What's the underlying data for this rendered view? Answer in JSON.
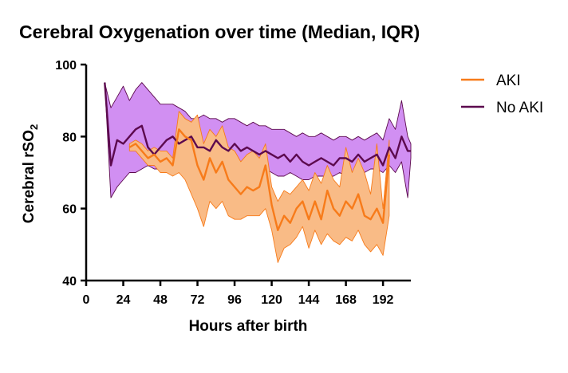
{
  "chart_data": {
    "type": "line",
    "title": "Cerebral Oxygenation over time (Median, IQR)",
    "xlabel": "Hours after birth",
    "ylabel": "Cerebral rSO",
    "ylabel_subscript": "2",
    "xlim": [
      0,
      210
    ],
    "ylim": [
      40,
      100
    ],
    "xticks": [
      0,
      24,
      48,
      72,
      96,
      120,
      144,
      168,
      192
    ],
    "yticks": [
      40,
      60,
      80,
      100
    ],
    "grid": false,
    "legend_position": "top-right",
    "series": [
      {
        "name": "No AKI",
        "color": "#5c0a4e",
        "band_color": "#d18ff2",
        "x": [
          12,
          16,
          20,
          24,
          28,
          32,
          36,
          40,
          44,
          48,
          52,
          56,
          60,
          64,
          68,
          72,
          76,
          80,
          84,
          88,
          92,
          96,
          100,
          104,
          108,
          112,
          116,
          120,
          124,
          128,
          132,
          136,
          140,
          144,
          148,
          152,
          156,
          160,
          164,
          168,
          172,
          176,
          180,
          184,
          188,
          192,
          196,
          200,
          204,
          208,
          210
        ],
        "median": [
          95,
          72,
          79,
          78,
          80,
          82,
          83,
          77,
          75,
          77,
          79,
          80,
          78,
          79,
          80,
          77,
          77,
          76,
          79,
          77,
          76,
          78,
          76,
          77,
          76,
          75,
          76,
          75,
          74,
          75,
          73,
          75,
          73,
          72,
          73,
          74,
          73,
          72,
          74,
          74,
          73,
          75,
          73,
          74,
          75,
          72,
          77,
          74,
          80,
          76,
          76
        ],
        "q1": [
          95,
          63,
          66,
          68,
          70,
          70,
          71,
          72,
          71,
          71,
          72,
          72,
          73,
          73,
          74,
          73,
          73,
          72,
          72,
          72,
          72,
          72,
          71,
          71,
          71,
          71,
          71,
          70,
          69,
          69,
          70,
          69,
          68,
          68,
          69,
          69,
          69,
          69,
          70,
          69,
          70,
          70,
          70,
          71,
          71,
          70,
          72,
          70,
          73,
          63,
          74
        ],
        "q3": [
          95,
          88,
          91,
          94,
          90,
          93,
          95,
          93,
          91,
          89,
          89,
          89,
          88,
          87,
          85,
          85,
          86,
          85,
          85,
          84,
          85,
          85,
          84,
          83,
          84,
          83,
          83,
          82,
          82,
          82,
          81,
          80,
          81,
          80,
          80,
          81,
          80,
          79,
          80,
          80,
          79,
          80,
          79,
          80,
          81,
          79,
          85,
          82,
          90,
          80,
          78
        ]
      },
      {
        "name": "AKI",
        "color": "#f77b1a",
        "band_color": "#f9bb86",
        "x": [
          28,
          32,
          36,
          40,
          44,
          48,
          52,
          56,
          60,
          64,
          68,
          72,
          76,
          80,
          84,
          88,
          92,
          96,
          100,
          104,
          108,
          112,
          116,
          120,
          124,
          128,
          132,
          136,
          140,
          144,
          148,
          152,
          156,
          160,
          164,
          168,
          172,
          176,
          180,
          184,
          188,
          192,
          196
        ],
        "median": [
          77,
          78,
          76,
          74,
          75,
          73,
          74,
          72,
          82,
          80,
          79,
          72,
          68,
          74,
          70,
          73,
          68,
          66,
          64,
          66,
          65,
          66,
          72,
          61,
          54,
          58,
          56,
          60,
          62,
          57,
          62,
          57,
          65,
          60,
          58,
          62,
          60,
          64,
          58,
          57,
          60,
          56,
          75
        ],
        "q1": [
          76,
          76,
          74,
          72,
          72,
          70,
          70,
          69,
          70,
          68,
          64,
          60,
          55,
          62,
          60,
          62,
          58,
          57,
          57,
          58,
          58,
          58,
          60,
          54,
          45,
          49,
          50,
          52,
          55,
          49,
          54,
          50,
          53,
          51,
          50,
          52,
          51,
          54,
          50,
          48,
          50,
          47,
          58
        ],
        "q3": [
          78,
          79,
          78,
          76,
          77,
          76,
          76,
          74,
          87,
          85,
          84,
          86,
          78,
          82,
          80,
          83,
          77,
          76,
          73,
          75,
          76,
          74,
          78,
          66,
          62,
          65,
          64,
          66,
          68,
          65,
          70,
          67,
          72,
          68,
          66,
          77,
          70,
          74,
          70,
          64,
          78,
          60,
          79
        ]
      }
    ]
  }
}
